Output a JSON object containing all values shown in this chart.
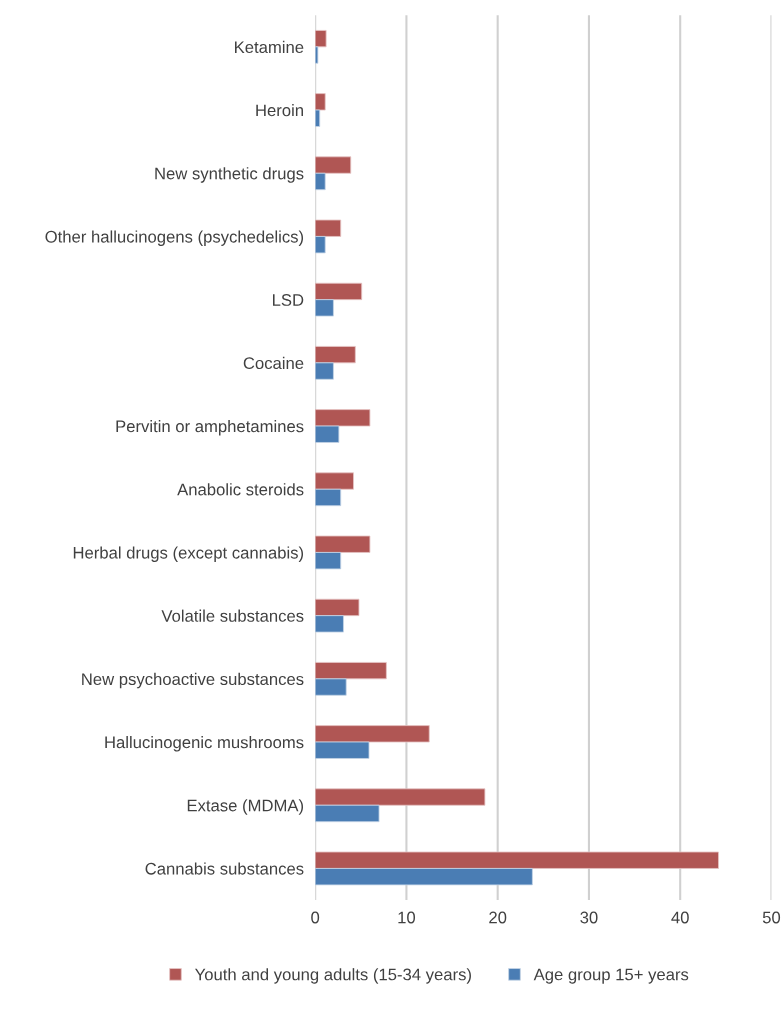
{
  "chart_data": {
    "type": "bar",
    "orientation": "horizontal",
    "categories": [
      "Ketamine",
      "Heroin",
      "New synthetic drugs",
      "Other hallucinogens (psychedelics)",
      "LSD",
      "Cocaine",
      "Pervitin or amphetamines",
      "Anabolic steroids",
      "Herbal drugs (except cannabis)",
      "Volatile substances",
      "New psychoactive substances",
      "Hallucinogenic mushrooms",
      "Extase (MDMA)",
      "Cannabis substances"
    ],
    "series": [
      {
        "name": "Youth and young adults (15-34 years)",
        "color": "#b05654",
        "values": [
          1.2,
          1.1,
          3.9,
          2.8,
          5.1,
          4.4,
          6.0,
          4.2,
          6.0,
          4.8,
          7.8,
          12.5,
          18.6,
          44.2
        ]
      },
      {
        "name": "Age group 15+ years",
        "color": "#4a7db4",
        "values": [
          0.3,
          0.5,
          1.1,
          1.1,
          2.0,
          2.0,
          2.6,
          2.8,
          2.8,
          3.1,
          3.4,
          5.9,
          7.0,
          23.8
        ]
      }
    ],
    "xlim": [
      0,
      50
    ],
    "xticks": [
      0,
      10,
      20,
      30,
      40,
      50
    ],
    "grid": "x",
    "legend": "bottom"
  }
}
